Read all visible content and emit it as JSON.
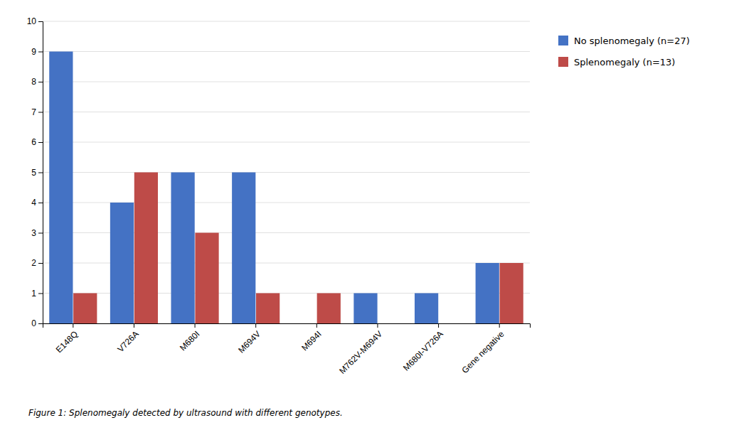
{
  "chart_data": {
    "type": "bar",
    "caption": "Figure 1: Splenomegaly detected by ultrasound with different genotypes.",
    "categories": [
      "E148Q",
      "V726A",
      "M680I",
      "M694V",
      "M694I",
      "M762V-M694V",
      "M680I-V726A",
      "Gene negative"
    ],
    "series": [
      {
        "name": "No splenomegaly (n=27)",
        "color": "#4472C4",
        "values": [
          9,
          4,
          5,
          5,
          0,
          1,
          1,
          2
        ]
      },
      {
        "name": "Splenomegaly (n=13)",
        "color": "#BE4B48",
        "values": [
          1,
          5,
          3,
          1,
          1,
          0,
          0,
          2
        ]
      }
    ],
    "ylim": [
      0,
      10
    ],
    "yticks": [
      0,
      1,
      2,
      3,
      4,
      5,
      6,
      7,
      8,
      9,
      10
    ],
    "grid": true,
    "legend": "right"
  }
}
